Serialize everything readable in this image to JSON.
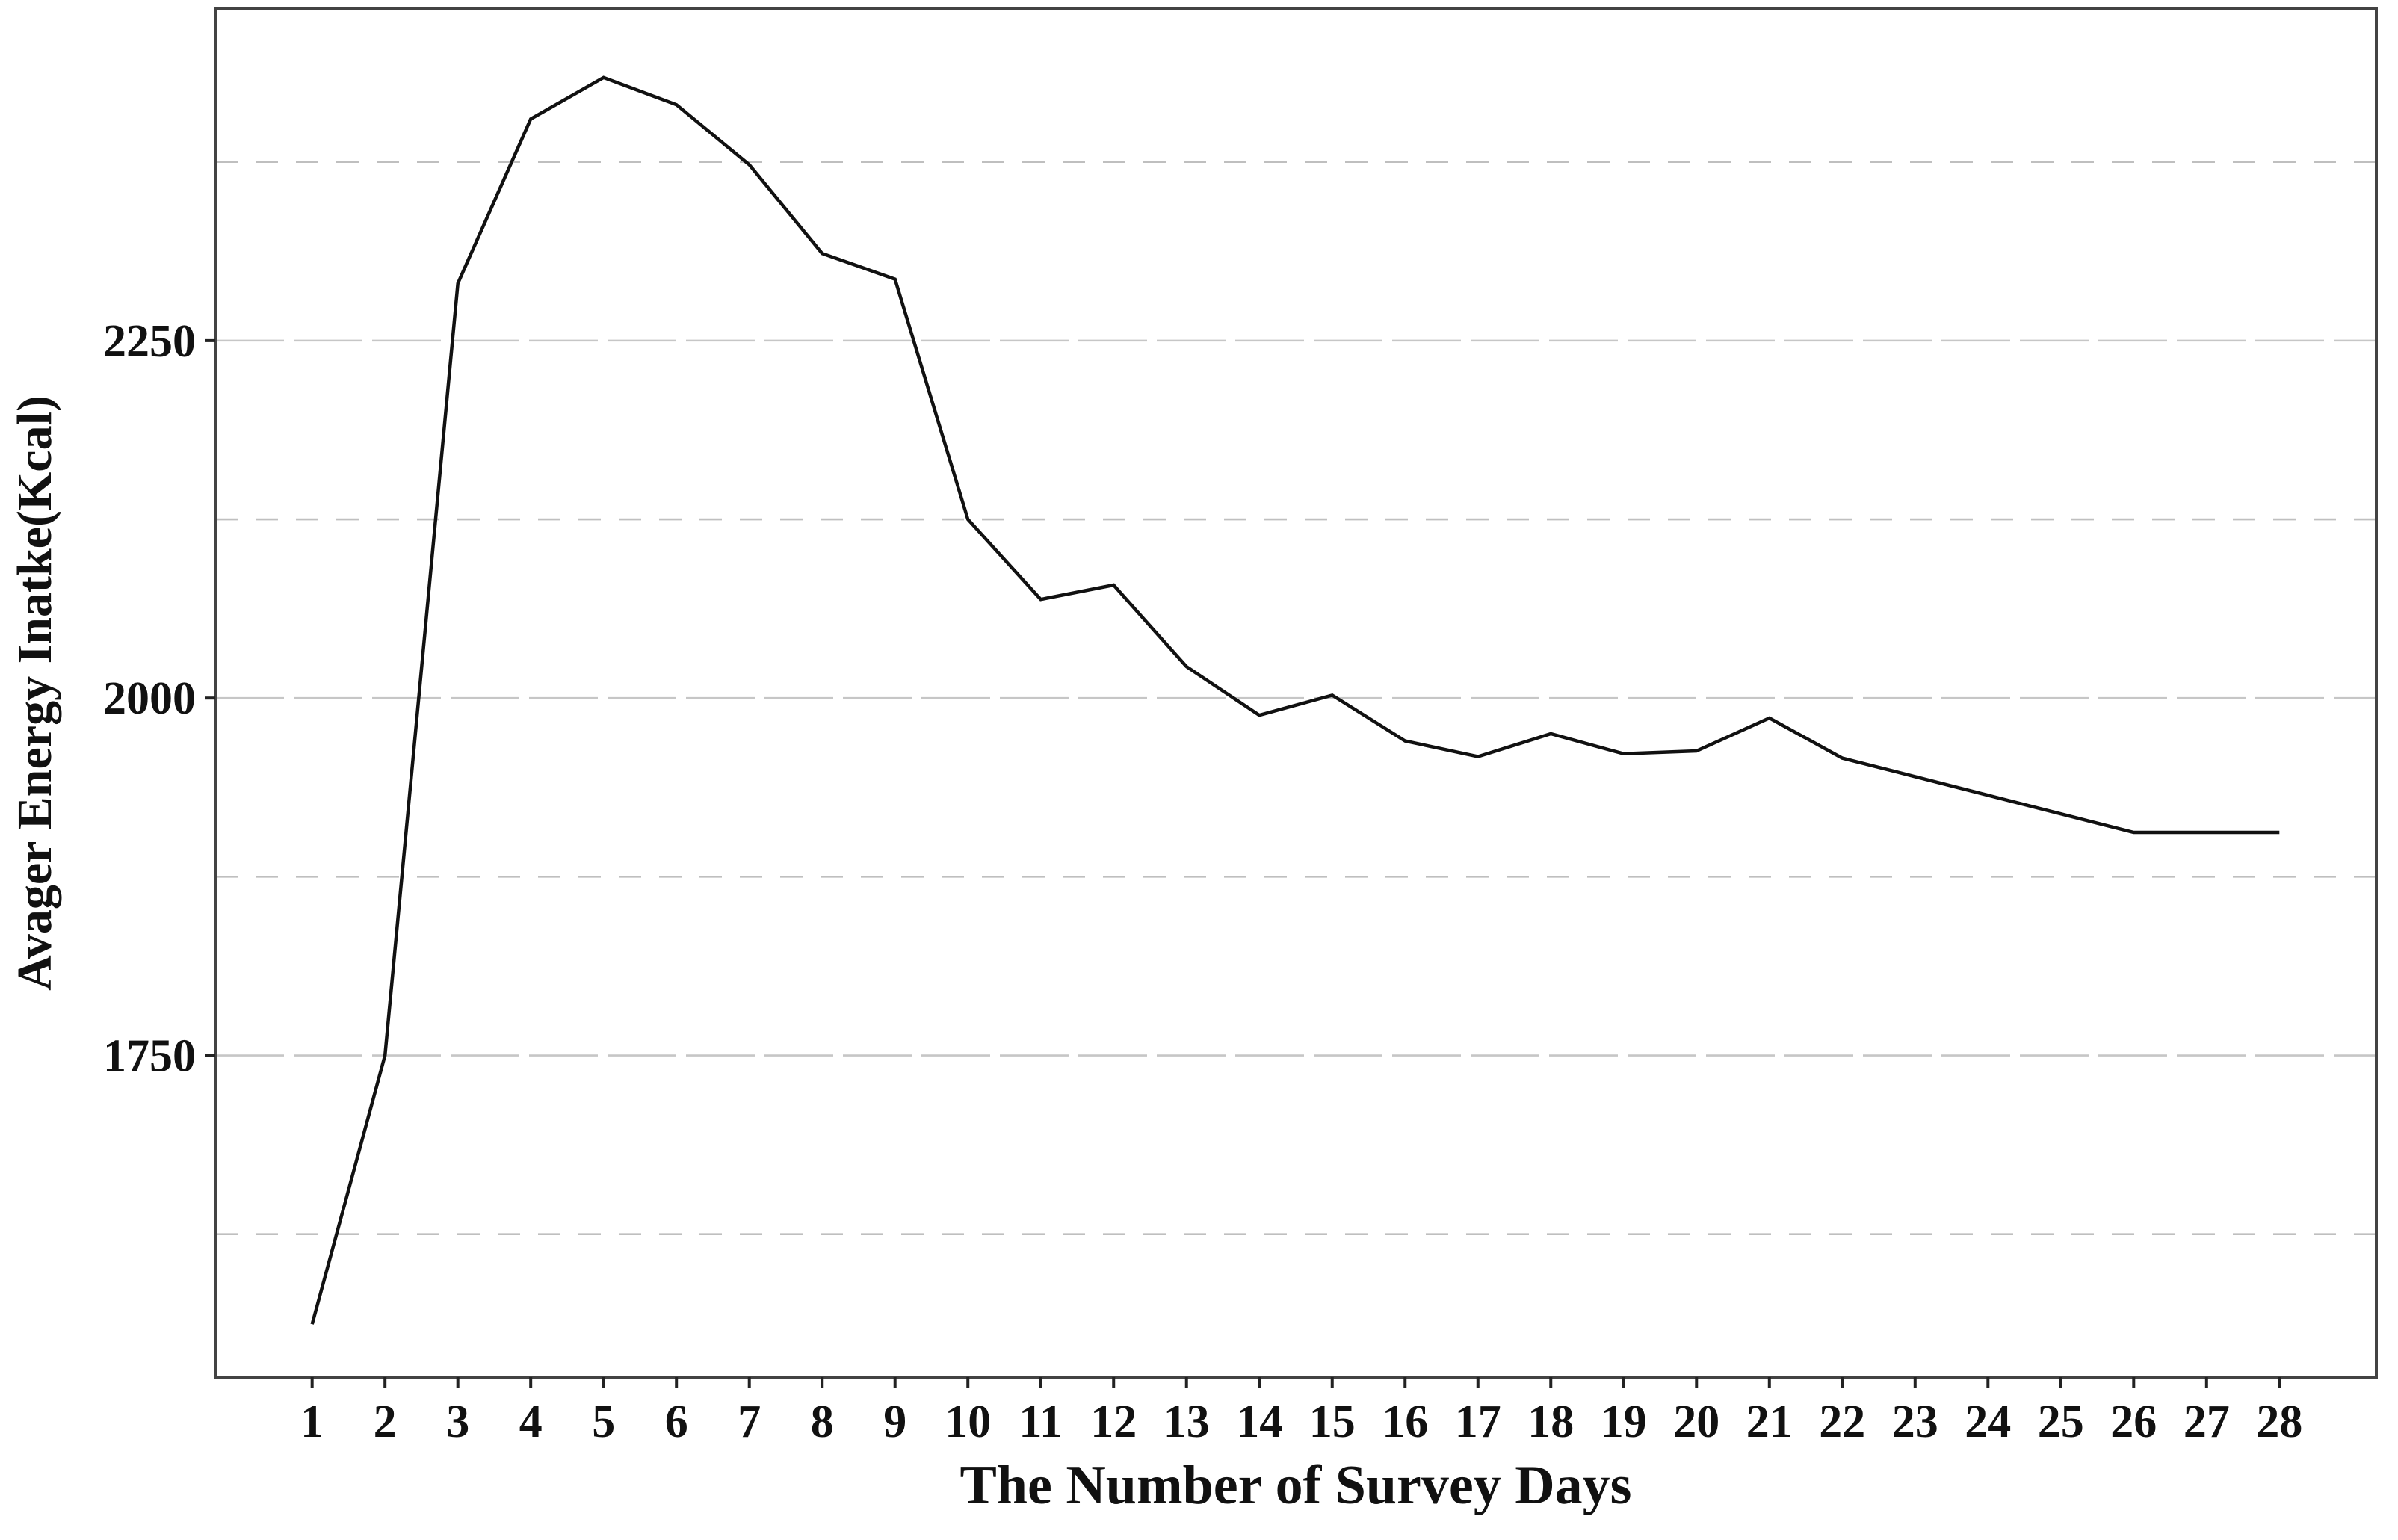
{
  "figure": {
    "background": "#ffffff"
  },
  "chart_data": {
    "type": "line",
    "title": "",
    "xlabel": "The Number of Survey Days",
    "ylabel": "Avager Energy Inatke(Kcal)",
    "x": [
      1,
      2,
      3,
      4,
      5,
      6,
      7,
      8,
      9,
      10,
      11,
      12,
      13,
      14,
      15,
      16,
      17,
      18,
      19,
      20,
      21,
      22,
      23,
      24,
      25,
      26,
      27,
      28
    ],
    "values": [
      1562,
      1750,
      2290,
      2405,
      2434,
      2415,
      2373,
      2311,
      2293,
      2125,
      2069,
      2079,
      2022,
      1988,
      2002,
      1970,
      1959,
      1975,
      1961,
      1963,
      1986,
      1958,
      1945,
      1932,
      1919,
      1906,
      1906,
      1906
    ],
    "series_name": "Average energy intake",
    "yticks": [
      1750,
      2000,
      2250
    ],
    "ytick_labels": [
      "1750",
      "2000",
      "2250"
    ],
    "major_gridlines": [
      1750,
      2000,
      2250
    ],
    "minor_gridlines": [
      1625,
      1875,
      2125,
      2375
    ],
    "xlim": [
      -0.33,
      29.33
    ],
    "ylim": [
      1525,
      2482
    ],
    "grid": "horizontal-only",
    "legend_position": "none",
    "markers": "none",
    "line_color": "#111111",
    "major_grid_color": "#c6c6c6",
    "minor_grid_color": "#bfbfbf",
    "spine_color": "#434343",
    "tick_color": "#222222",
    "text_color": "#111111"
  }
}
